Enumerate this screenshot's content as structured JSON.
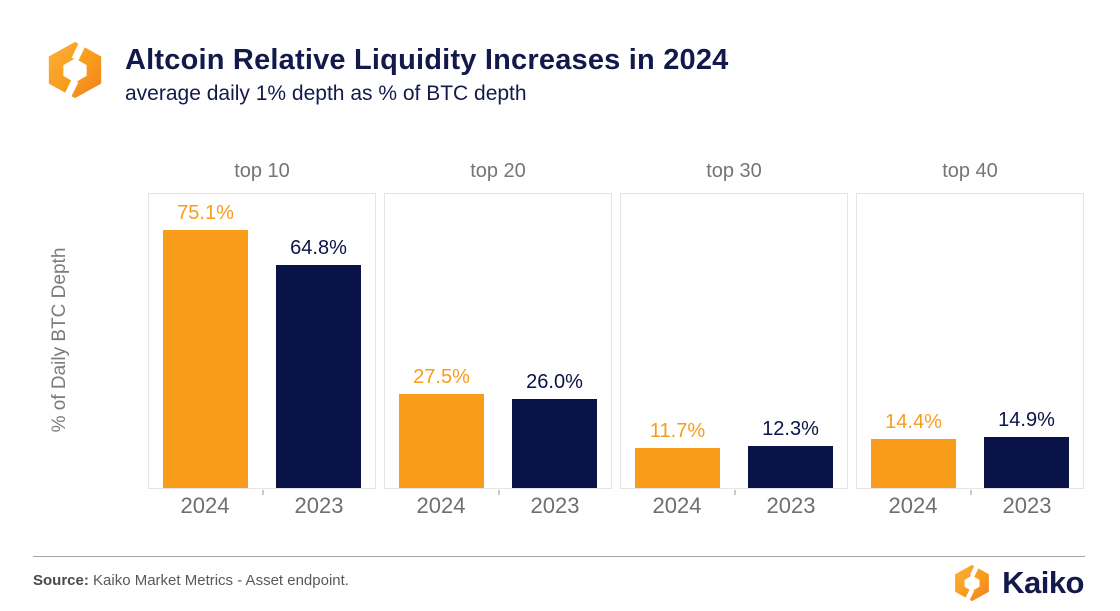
{
  "header": {
    "title": "Altcoin Relative Liquidity Increases in 2024",
    "subtitle": "average daily 1% depth as % of BTC depth"
  },
  "chart_data": {
    "type": "bar",
    "title": "Altcoin Relative Liquidity Increases in 2024",
    "subtitle": "average daily 1% depth as % of BTC depth",
    "ylabel": "% of Daily BTC Depth",
    "xlabel": "",
    "facets": [
      "top 10",
      "top 20",
      "top 30",
      "top 40"
    ],
    "categories": [
      "2024",
      "2023"
    ],
    "series": [
      {
        "name": "2024",
        "color": "#F89C1A",
        "values": [
          75.1,
          27.5,
          11.7,
          14.4
        ]
      },
      {
        "name": "2023",
        "color": "#0A1347",
        "values": [
          64.8,
          26.0,
          12.3,
          14.9
        ]
      }
    ],
    "ylim": [
      0,
      85.6
    ],
    "value_suffix": "%",
    "grid": false,
    "legend_position": "none"
  },
  "footer": {
    "source_label": "Source:",
    "source_text": " Kaiko Market Metrics - Asset endpoint.",
    "brand": "Kaiko"
  },
  "colors": {
    "orange": "#F89C1A",
    "navy": "#0A1347",
    "title_text": "#131A4B",
    "facet_text": "#757575",
    "axis_text": "#6E6E6E",
    "panel_border": "#E4E4E4"
  },
  "icons": {
    "logo": "kaiko-hexagon-mark"
  }
}
